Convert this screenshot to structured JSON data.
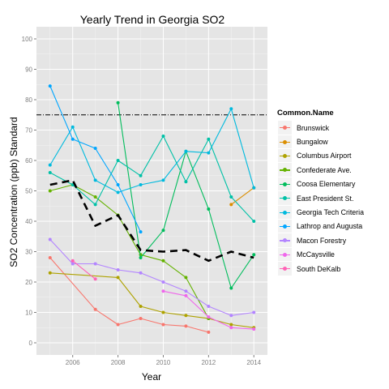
{
  "chart_data": {
    "type": "line",
    "title": "Yearly Trend in Georgia SO2",
    "xlabel": "Year",
    "ylabel": "SO2 Concentration (ppb) Standard",
    "xlim": [
      2004.4,
      2014.6
    ],
    "ylim": [
      -4,
      104
    ],
    "x_ticks": [
      2006,
      2008,
      2010,
      2012,
      2014
    ],
    "y_ticks": [
      0,
      10,
      20,
      30,
      40,
      50,
      60,
      70,
      80,
      90,
      100
    ],
    "grid": true,
    "legend_title": "Common.Name",
    "legend_position": "right",
    "standard_line": 75,
    "series": [
      {
        "name": "Brunswick",
        "color": "#F8766D",
        "x": [
          2005,
          2007,
          2008,
          2009,
          2010,
          2011,
          2012
        ],
        "values": [
          28,
          11,
          6,
          8,
          6,
          5.5,
          3.5
        ]
      },
      {
        "name": "Bungalow",
        "color": "#DB8E00",
        "x": [
          2013,
          2014
        ],
        "values": [
          45.5,
          51
        ]
      },
      {
        "name": "Columbus Airport",
        "color": "#AEA200",
        "x": [
          2005,
          2008,
          2009,
          2010,
          2011,
          2012,
          2013,
          2014
        ],
        "values": [
          23,
          21.5,
          12,
          10,
          9,
          8,
          6,
          5
        ]
      },
      {
        "name": "Confederate Ave.",
        "color": "#64B200",
        "x": [
          2005,
          2006,
          2007,
          2008,
          2009,
          2010,
          2011,
          2012
        ],
        "values": [
          50,
          52,
          48,
          42,
          29,
          27,
          21.5,
          8
        ]
      },
      {
        "name": "Coosa Elementary",
        "color": "#00BD5C",
        "x": [
          2008,
          2009,
          2010,
          2011,
          2012,
          2013,
          2014
        ],
        "values": [
          79,
          28,
          37,
          63,
          44,
          18,
          29
        ]
      },
      {
        "name": "East President St.",
        "color": "#00C1A7",
        "x": [
          2005,
          2006,
          2007,
          2008,
          2009,
          2010,
          2011,
          2012,
          2013,
          2014
        ],
        "values": [
          56,
          52,
          45.5,
          60,
          55,
          68,
          53,
          67,
          48,
          40
        ]
      },
      {
        "name": "Georgia Tech Criteria",
        "color": "#00BADE",
        "x": [
          2005,
          2006,
          2007,
          2008,
          2009,
          2010,
          2011,
          2012,
          2013,
          2014
        ],
        "values": [
          58.5,
          71,
          53.5,
          49.5,
          52,
          53.5,
          63,
          62.5,
          77,
          51
        ]
      },
      {
        "name": "Lathrop and Augusta",
        "color": "#00A6FF",
        "x": [
          2005,
          2006,
          2007,
          2008,
          2009
        ],
        "values": [
          84.5,
          67,
          64,
          52,
          36.5
        ]
      },
      {
        "name": "Macon Forestry",
        "color": "#B385FF",
        "x": [
          2005,
          2006,
          2007,
          2008,
          2009,
          2010,
          2011,
          2012,
          2013,
          2014
        ],
        "values": [
          34,
          26,
          26,
          24,
          23,
          20,
          17,
          12,
          9,
          10
        ]
      },
      {
        "name": "McCaysville",
        "color": "#EF67EB",
        "x": [
          2010,
          2011,
          2012,
          2013,
          2014
        ],
        "values": [
          17,
          15.5,
          8.5,
          5,
          4.5
        ]
      },
      {
        "name": "South DeKalb",
        "color": "#FF63B6",
        "x": [
          2006,
          2007
        ],
        "values": [
          27,
          21
        ]
      },
      {
        "color": "#000000",
        "dashed": true,
        "x": [
          2005,
          2006,
          2007,
          2008,
          2009,
          2010,
          2011,
          2012,
          2013,
          2014
        ],
        "values": [
          52,
          53.5,
          38.5,
          42,
          30.5,
          30,
          30.5,
          27,
          30,
          28
        ]
      }
    ]
  }
}
